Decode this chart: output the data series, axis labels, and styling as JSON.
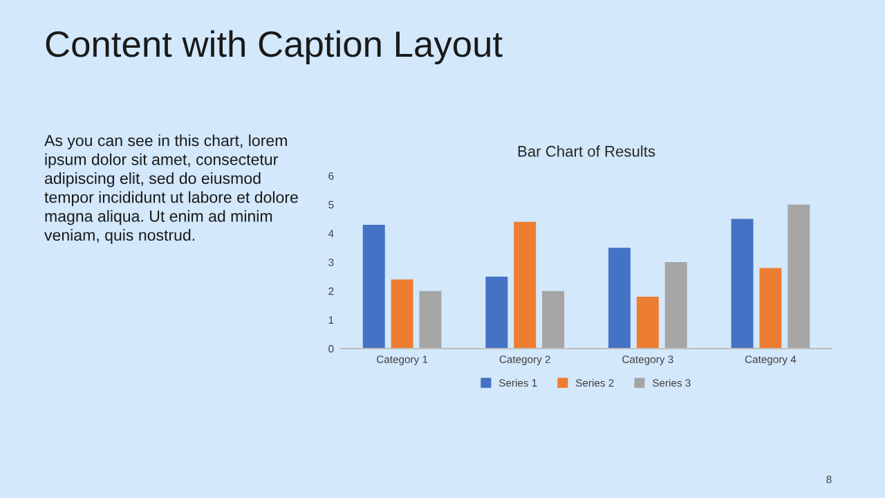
{
  "chart_data": {
    "type": "bar",
    "title": "Bar Chart of Results",
    "categories": [
      "Category 1",
      "Category 2",
      "Category 3",
      "Category 4"
    ],
    "series": [
      {
        "name": "Series 1",
        "color": "#4472c4",
        "values": [
          4.3,
          2.5,
          3.5,
          4.5
        ]
      },
      {
        "name": "Series 2",
        "color": "#ed7d31",
        "values": [
          2.4,
          4.4,
          1.8,
          2.8
        ]
      },
      {
        "name": "Series 3",
        "color": "#a5a5a5",
        "values": [
          2,
          2,
          3,
          5
        ]
      }
    ],
    "ylim": [
      0,
      6
    ],
    "yticks": [
      0,
      1,
      2,
      3,
      4,
      5,
      6
    ],
    "grid": false,
    "legend": "bottom",
    "annotations": [
      "Content with Caption Layout",
      "As you can see in this chart, lorem ipsum dolor sit amet, consectetur adipiscing elit, sed do eiusmod tempor incididunt ut labore et dolore magna aliqua. Ut enim ad minim veniam, quis nostrud.",
      "8"
    ]
  }
}
